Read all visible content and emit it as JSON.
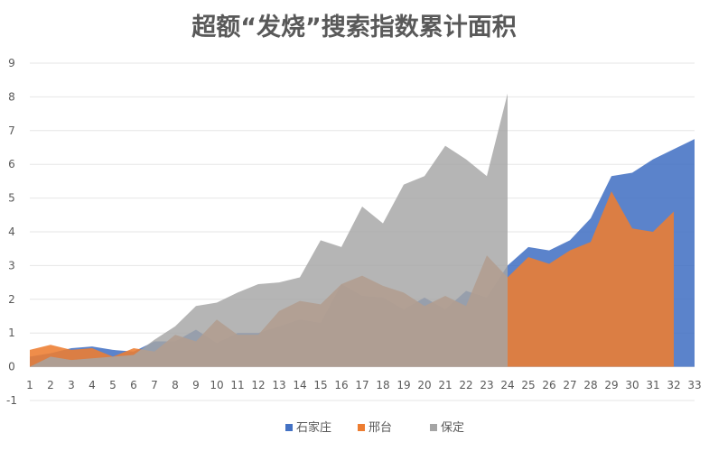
{
  "chart_data": {
    "type": "area",
    "title": "超额“发烧”搜索指数累计面积",
    "x": [
      1,
      2,
      3,
      4,
      5,
      6,
      7,
      8,
      9,
      10,
      11,
      12,
      13,
      14,
      15,
      16,
      17,
      18,
      19,
      20,
      21,
      22,
      23,
      24,
      25,
      26,
      27,
      28,
      29,
      30,
      31,
      32,
      33
    ],
    "ylim": [
      -1,
      9
    ],
    "yticks": [
      -1,
      0,
      1,
      2,
      3,
      4,
      5,
      6,
      7,
      8,
      9
    ],
    "grid": true,
    "legend_position": "bottom",
    "series": [
      {
        "name": "石家庄",
        "color": "#4472C4",
        "values": [
          0.3,
          0.4,
          0.55,
          0.6,
          0.5,
          0.45,
          0.75,
          0.75,
          1.1,
          0.7,
          1.0,
          1.0,
          1.2,
          1.4,
          1.3,
          2.45,
          2.1,
          2.05,
          1.7,
          2.05,
          1.7,
          2.25,
          2.05,
          3.0,
          3.55,
          3.45,
          3.75,
          4.4,
          5.65,
          5.75,
          6.15,
          6.45,
          6.75
        ]
      },
      {
        "name": "邢台",
        "color": "#ED7D31",
        "values": [
          0.5,
          0.65,
          0.5,
          0.55,
          0.3,
          0.55,
          0.45,
          0.95,
          0.75,
          1.4,
          0.95,
          0.95,
          1.65,
          1.95,
          1.85,
          2.45,
          2.7,
          2.4,
          2.2,
          1.8,
          2.1,
          1.8,
          3.3,
          2.65,
          3.25,
          3.05,
          3.45,
          3.7,
          5.2,
          4.1,
          4.0,
          4.6,
          null
        ]
      },
      {
        "name": "保定",
        "color": "#A5A5A5",
        "values": [
          0.0,
          0.3,
          0.2,
          0.25,
          0.3,
          0.35,
          0.8,
          1.2,
          1.8,
          1.9,
          2.2,
          2.45,
          2.5,
          2.65,
          3.75,
          3.55,
          4.75,
          4.25,
          5.4,
          5.65,
          6.55,
          6.15,
          5.65,
          8.1,
          null,
          null,
          null,
          null,
          null,
          null,
          null,
          null,
          null
        ]
      }
    ]
  }
}
